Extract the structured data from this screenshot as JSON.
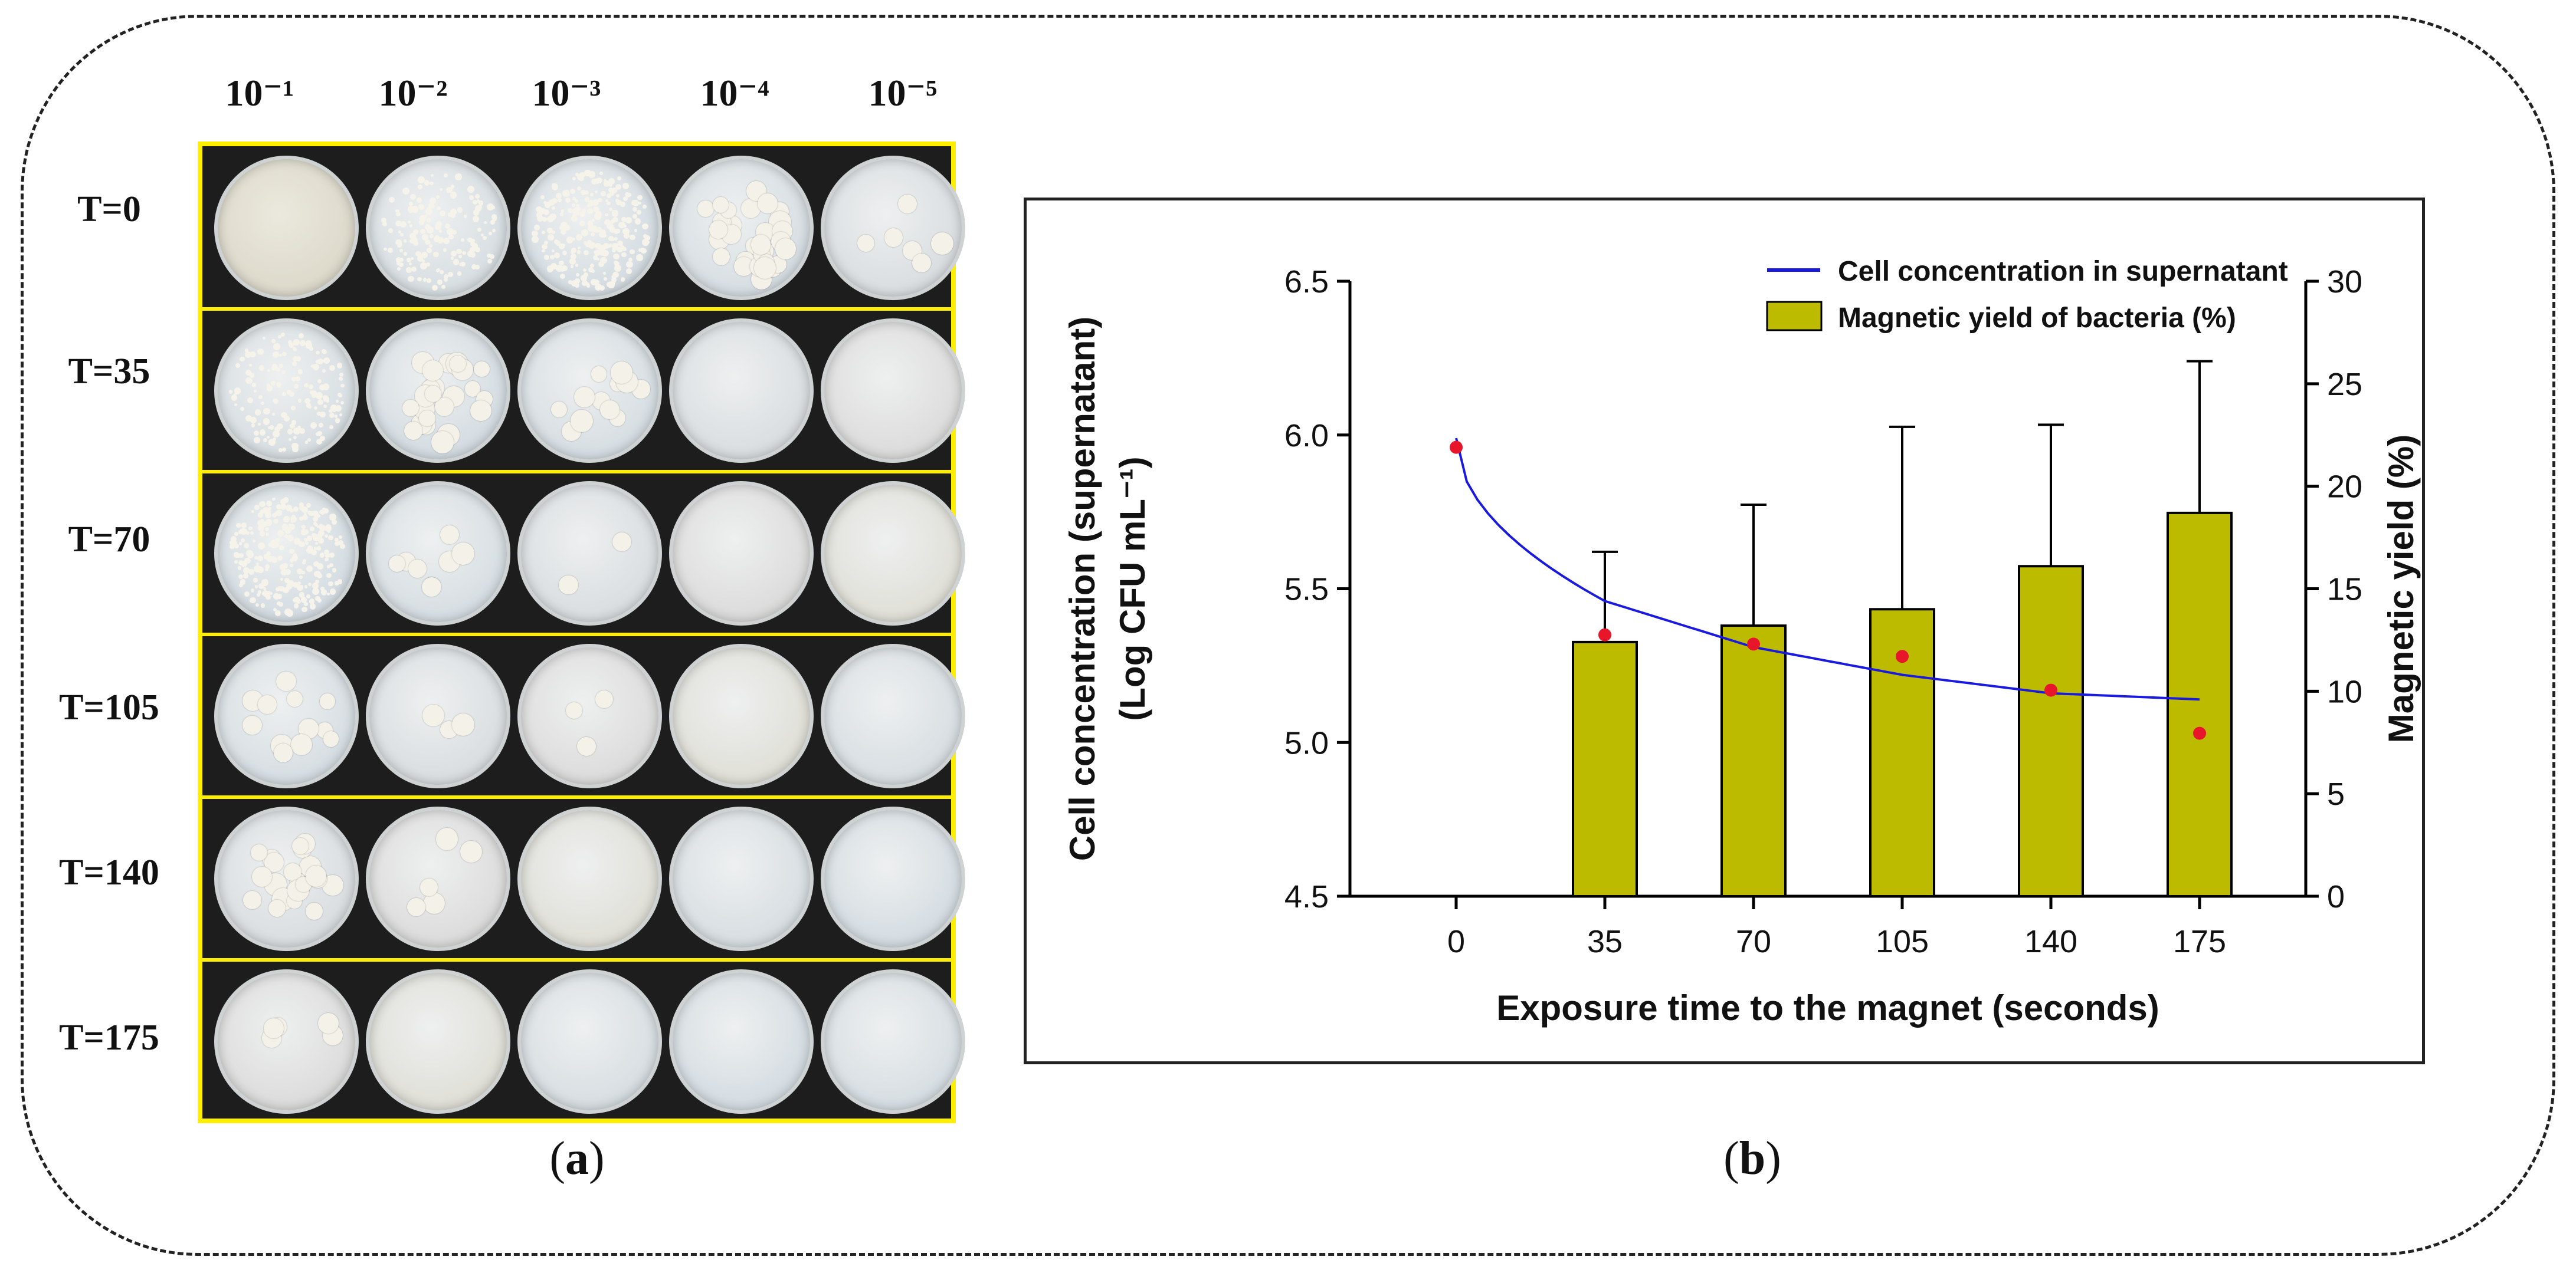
{
  "panel_a": {
    "dilution_labels": [
      "10⁻¹",
      "10⁻²",
      "10⁻³",
      "10⁻⁴",
      "10⁻⁵"
    ],
    "time_labels": [
      "T=0",
      "T=35",
      "T=70",
      "T=105",
      "T=140",
      "T=175"
    ],
    "caption_open": "(",
    "caption_letter": "a",
    "caption_close": ")"
  },
  "panel_b": {
    "caption_open": "(",
    "caption_letter": "b",
    "caption_close": ")"
  },
  "colors": {
    "bar": "#bcbb00",
    "line": "#1a1adf",
    "point": "#e8162a",
    "grid_border": "#ffee00"
  },
  "chart_data": {
    "type": "bar",
    "categories": [
      "0",
      "35",
      "70",
      "105",
      "140",
      "175"
    ],
    "x": [
      0,
      35,
      70,
      105,
      140,
      175
    ],
    "xlabel": "Exposure time to the magnet (seconds)",
    "ylabel_line1": "Cell concentration (supernatant)",
    "ylabel_line2": "(Log CFU mL⁻¹)",
    "y2label": "Magnetic yield (%)",
    "ylim": [
      4.5,
      6.5
    ],
    "y2lim": [
      0,
      30
    ],
    "yticks": [
      "4.5",
      "5.0",
      "5.5",
      "6.0",
      "6.5"
    ],
    "y2ticks": [
      "0",
      "5",
      "10",
      "15",
      "20",
      "25",
      "30"
    ],
    "series": [
      {
        "name": "Magnetic yield of bacteria (%)",
        "type": "bar",
        "axis": "right",
        "x": [
          35,
          70,
          105,
          140,
          175
        ],
        "values": [
          12.4,
          13.2,
          14.0,
          16.1,
          18.7
        ],
        "error_upper": [
          4.4,
          5.9,
          8.9,
          6.9,
          7.4
        ]
      },
      {
        "name": "Cell concentration in supernatant",
        "type": "line",
        "axis": "left",
        "x": [
          0,
          35,
          70,
          105,
          140,
          175
        ],
        "points": [
          5.96,
          5.35,
          5.32,
          5.28,
          5.17,
          5.03
        ],
        "fit": [
          5.99,
          5.46,
          5.31,
          5.22,
          5.16,
          5.14
        ]
      }
    ],
    "legend": [
      "Cell concentration in supernatant",
      "Magnetic yield of bacteria (%)"
    ],
    "legend_position": "top-right"
  }
}
